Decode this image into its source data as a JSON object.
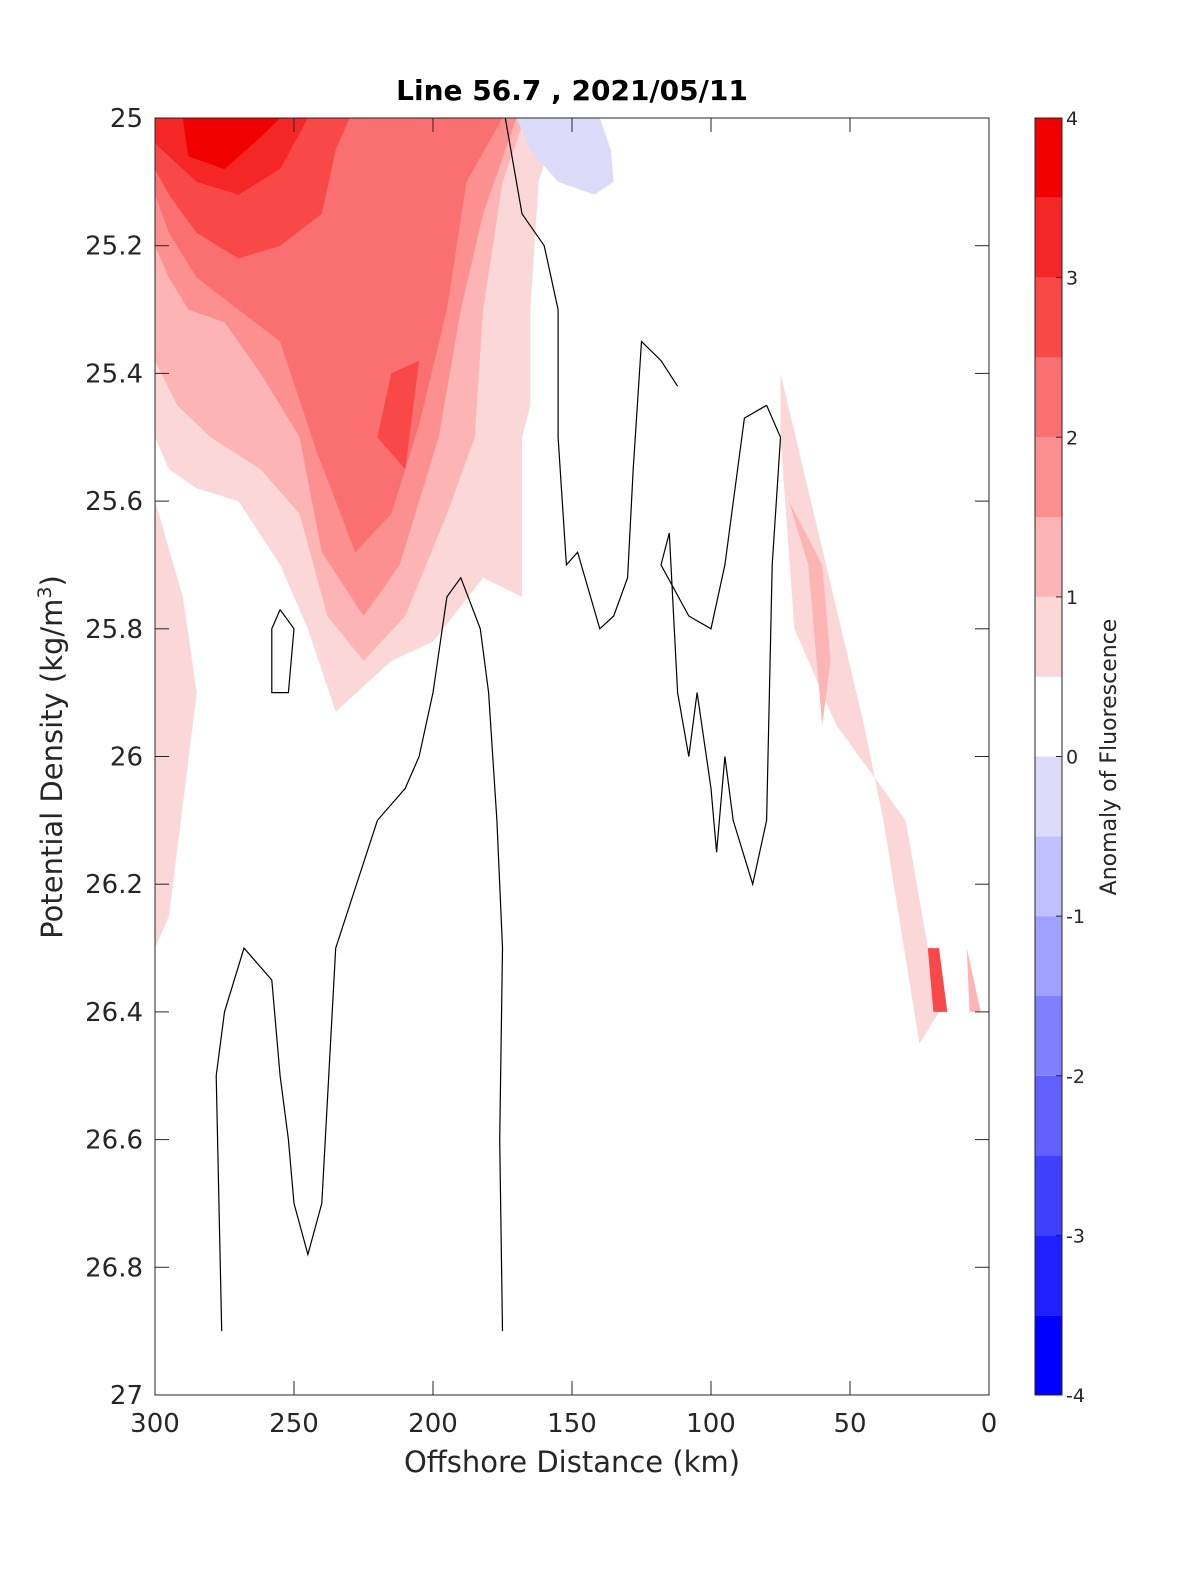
{
  "chart_data": {
    "type": "heatmap",
    "title": "Line 56.7 , 2021/05/11",
    "xlabel": "Offshore Distance (km)",
    "ylabel": "Potential Density (kg/m",
    "ylabel_sup": "3",
    "ylabel_close": ")",
    "xlim": [
      300,
      0
    ],
    "ylim": [
      25,
      27
    ],
    "x_reversed": true,
    "y_reversed": true,
    "xticks": [
      "300",
      "250",
      "200",
      "150",
      "100",
      "50",
      "0"
    ],
    "xtick_values": [
      300,
      250,
      200,
      150,
      100,
      50,
      0
    ],
    "yticks": [
      "25",
      "25.2",
      "25.4",
      "25.6",
      "25.8",
      "26",
      "26.2",
      "26.4",
      "26.6",
      "26.8",
      "27"
    ],
    "ytick_values": [
      25,
      25.2,
      25.4,
      25.6,
      25.8,
      26,
      26.2,
      26.4,
      26.6,
      26.8,
      27
    ],
    "colorbar": {
      "label": "Anomaly of Fluorescence",
      "range": [
        -4,
        4
      ],
      "ticks": [
        "4",
        "3",
        "2",
        "1",
        "0",
        "-1",
        "-2",
        "-3",
        "-4"
      ],
      "tick_values": [
        4,
        3,
        2,
        1,
        0,
        -1,
        -2,
        -3,
        -4
      ],
      "levels": [
        -4,
        -3.5,
        -3,
        -2.5,
        -2,
        -1.5,
        -1,
        -0.5,
        0,
        0.5,
        1,
        1.5,
        2,
        2.5,
        3,
        3.5,
        4
      ],
      "colors": [
        "#0000ff",
        "#2020ff",
        "#4040ff",
        "#6060ff",
        "#8080ff",
        "#a0a0ff",
        "#c0c0ff",
        "#dcdcfa",
        "#ffffff",
        "#fbd7d7",
        "#fcb4b4",
        "#fc9090",
        "#fa7070",
        "#f84848",
        "#f52626",
        "#f00000"
      ]
    },
    "filled_regions": [
      {
        "level": 0.5,
        "points": [
          [
            300,
            25
          ],
          [
            155,
            25
          ],
          [
            162,
            25.1
          ],
          [
            165,
            25.3
          ],
          [
            165,
            25.45
          ],
          [
            168,
            25.5
          ],
          [
            168,
            25.75
          ],
          [
            182,
            25.72
          ],
          [
            200,
            25.82
          ],
          [
            215,
            25.85
          ],
          [
            235,
            25.93
          ],
          [
            245,
            25.8
          ],
          [
            255,
            25.7
          ],
          [
            270,
            25.6
          ],
          [
            285,
            25.58
          ],
          [
            295,
            25.55
          ],
          [
            300,
            25.5
          ]
        ]
      },
      {
        "level": 1,
        "points": [
          [
            300,
            25
          ],
          [
            167,
            25
          ],
          [
            175,
            25.1
          ],
          [
            182,
            25.3
          ],
          [
            185,
            25.5
          ],
          [
            195,
            25.62
          ],
          [
            210,
            25.78
          ],
          [
            225,
            25.85
          ],
          [
            238,
            25.78
          ],
          [
            248,
            25.62
          ],
          [
            262,
            25.55
          ],
          [
            280,
            25.5
          ],
          [
            292,
            25.45
          ],
          [
            300,
            25.38
          ]
        ]
      },
      {
        "level": 1.5,
        "points": [
          [
            300,
            25
          ],
          [
            170,
            25
          ],
          [
            182,
            25.15
          ],
          [
            190,
            25.3
          ],
          [
            198,
            25.5
          ],
          [
            212,
            25.7
          ],
          [
            225,
            25.78
          ],
          [
            240,
            25.68
          ],
          [
            248,
            25.5
          ],
          [
            262,
            25.4
          ],
          [
            275,
            25.32
          ],
          [
            288,
            25.3
          ],
          [
            295,
            25.25
          ],
          [
            300,
            25.2
          ]
        ]
      },
      {
        "level": 2,
        "points": [
          [
            300,
            25
          ],
          [
            175,
            25
          ],
          [
            188,
            25.1
          ],
          [
            195,
            25.3
          ],
          [
            205,
            25.48
          ],
          [
            215,
            25.62
          ],
          [
            228,
            25.68
          ],
          [
            242,
            25.52
          ],
          [
            255,
            25.35
          ],
          [
            270,
            25.3
          ],
          [
            285,
            25.25
          ],
          [
            295,
            25.18
          ],
          [
            300,
            25.12
          ]
        ]
      },
      {
        "level": 2.5,
        "points": [
          [
            300,
            25
          ],
          [
            230,
            25
          ],
          [
            235,
            25.05
          ],
          [
            240,
            25.15
          ],
          [
            255,
            25.2
          ],
          [
            270,
            25.22
          ],
          [
            285,
            25.18
          ],
          [
            295,
            25.12
          ],
          [
            300,
            25.08
          ]
        ]
      },
      {
        "level": 2.5,
        "points": [
          [
            205,
            25.38
          ],
          [
            210,
            25.55
          ],
          [
            220,
            25.5
          ],
          [
            215,
            25.4
          ]
        ]
      },
      {
        "level": 3,
        "points": [
          [
            300,
            25
          ],
          [
            245,
            25
          ],
          [
            255,
            25.08
          ],
          [
            270,
            25.12
          ],
          [
            285,
            25.1
          ],
          [
            295,
            25.06
          ],
          [
            300,
            25.04
          ]
        ]
      },
      {
        "level": 3.5,
        "points": [
          [
            290,
            25
          ],
          [
            255,
            25
          ],
          [
            262,
            25.03
          ],
          [
            275,
            25.08
          ],
          [
            288,
            25.06
          ]
        ]
      },
      {
        "level": -0.5,
        "points": [
          [
            170,
            25
          ],
          [
            140,
            25
          ],
          [
            136,
            25.05
          ],
          [
            135,
            25.1
          ],
          [
            142,
            25.12
          ],
          [
            155,
            25.1
          ],
          [
            165,
            25.05
          ]
        ]
      },
      {
        "level": 0.5,
        "points": [
          [
            75,
            25.4
          ],
          [
            45,
            25.95
          ],
          [
            38,
            26.1
          ],
          [
            25,
            26.45
          ],
          [
            18,
            26.4
          ],
          [
            30,
            26.1
          ],
          [
            55,
            25.95
          ],
          [
            70,
            25.8
          ],
          [
            75,
            25.5
          ]
        ]
      },
      {
        "level": 1,
        "points": [
          [
            72,
            25.6
          ],
          [
            60,
            25.7
          ],
          [
            57,
            25.85
          ],
          [
            60,
            25.95
          ],
          [
            65,
            25.7
          ]
        ]
      },
      {
        "level": 2.5,
        "points": [
          [
            22,
            26.3
          ],
          [
            18,
            26.3
          ],
          [
            15,
            26.4
          ],
          [
            20,
            26.4
          ]
        ]
      },
      {
        "level": 1,
        "points": [
          [
            8,
            26.3
          ],
          [
            3,
            26.4
          ],
          [
            7,
            26.4
          ]
        ]
      },
      {
        "level": 0.5,
        "points": [
          [
            300,
            25.6
          ],
          [
            290,
            25.75
          ],
          [
            285,
            25.9
          ],
          [
            295,
            26.25
          ],
          [
            300,
            26.3
          ]
        ]
      }
    ],
    "contour_lines": [
      {
        "level": 0,
        "points": [
          [
            174,
            25
          ],
          [
            168,
            25.15
          ],
          [
            160,
            25.2
          ],
          [
            155,
            25.3
          ],
          [
            155,
            25.5
          ],
          [
            152,
            25.7
          ],
          [
            148,
            25.68
          ],
          [
            140,
            25.8
          ],
          [
            135,
            25.78
          ],
          [
            130,
            25.72
          ],
          [
            128,
            25.55
          ],
          [
            125,
            25.35
          ],
          [
            118,
            25.38
          ],
          [
            112,
            25.42
          ]
        ]
      },
      {
        "level": 0,
        "points": [
          [
            80,
            25.45
          ],
          [
            88,
            25.47
          ],
          [
            95,
            25.7
          ],
          [
            100,
            25.8
          ],
          [
            108,
            25.78
          ],
          [
            118,
            25.7
          ],
          [
            115,
            25.65
          ],
          [
            112,
            25.9
          ],
          [
            108,
            26
          ],
          [
            105,
            25.9
          ],
          [
            100,
            26.05
          ],
          [
            98,
            26.15
          ],
          [
            95,
            26
          ],
          [
            92,
            26.1
          ],
          [
            85,
            26.2
          ],
          [
            80,
            26.1
          ],
          [
            78,
            25.7
          ],
          [
            75,
            25.5
          ],
          [
            80,
            25.45
          ]
        ]
      },
      {
        "level": 0,
        "points": [
          [
            255,
            25.77
          ],
          [
            250,
            25.8
          ],
          [
            252,
            25.9
          ],
          [
            258,
            25.9
          ],
          [
            258,
            25.8
          ],
          [
            255,
            25.77
          ]
        ]
      },
      {
        "level": 0,
        "points": [
          [
            175,
            26.9
          ],
          [
            176,
            26.6
          ],
          [
            175,
            26.3
          ],
          [
            177,
            26.1
          ],
          [
            180,
            25.9
          ],
          [
            183,
            25.8
          ],
          [
            190,
            25.72
          ],
          [
            195,
            25.75
          ],
          [
            200,
            25.9
          ],
          [
            205,
            26
          ],
          [
            210,
            26.05
          ],
          [
            220,
            26.1
          ],
          [
            235,
            26.3
          ],
          [
            240,
            26.7
          ],
          [
            245,
            26.78
          ],
          [
            250,
            26.7
          ],
          [
            252,
            26.6
          ],
          [
            255,
            26.5
          ],
          [
            258,
            26.35
          ],
          [
            268,
            26.3
          ],
          [
            275,
            26.4
          ],
          [
            278,
            26.5
          ],
          [
            276,
            26.9
          ]
        ]
      }
    ]
  }
}
